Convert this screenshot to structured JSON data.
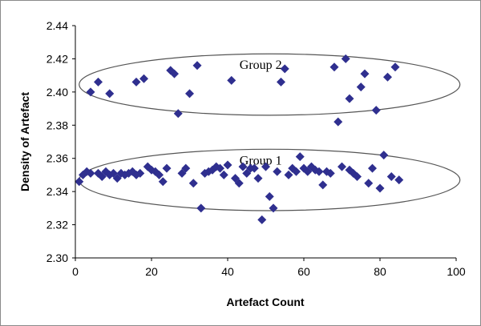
{
  "chart_data": {
    "type": "scatter",
    "title": "",
    "xlabel": "Artefact Count",
    "ylabel": "Density of Artefact",
    "xlim": [
      0,
      100
    ],
    "ylim": [
      2.3,
      2.44
    ],
    "x_ticks": [
      "0",
      "20",
      "40",
      "60",
      "80",
      "100"
    ],
    "y_ticks": [
      "2.30",
      "2.32",
      "2.34",
      "2.36",
      "2.38",
      "2.40",
      "2.42",
      "2.44"
    ],
    "grid": false,
    "legend": "none",
    "marker": "diamond",
    "marker_color": "#2f2f8f",
    "annotations": [
      {
        "text": "Group 2",
        "cx": 51,
        "cy": 2.4045,
        "rx": 50,
        "ry": 0.0185
      },
      {
        "text": "Group 1",
        "cx": 51,
        "cy": 2.347,
        "rx": 50,
        "ry": 0.0185
      }
    ],
    "points": [
      {
        "x": 4,
        "y": 2.4
      },
      {
        "x": 6,
        "y": 2.406
      },
      {
        "x": 9,
        "y": 2.399
      },
      {
        "x": 16,
        "y": 2.406
      },
      {
        "x": 18,
        "y": 2.408
      },
      {
        "x": 25,
        "y": 2.413
      },
      {
        "x": 26,
        "y": 2.411
      },
      {
        "x": 27,
        "y": 2.387
      },
      {
        "x": 30,
        "y": 2.399
      },
      {
        "x": 32,
        "y": 2.416
      },
      {
        "x": 41,
        "y": 2.407
      },
      {
        "x": 54,
        "y": 2.406
      },
      {
        "x": 55,
        "y": 2.414
      },
      {
        "x": 68,
        "y": 2.415
      },
      {
        "x": 69,
        "y": 2.382
      },
      {
        "x": 71,
        "y": 2.42
      },
      {
        "x": 72,
        "y": 2.396
      },
      {
        "x": 75,
        "y": 2.403
      },
      {
        "x": 76,
        "y": 2.411
      },
      {
        "x": 79,
        "y": 2.389
      },
      {
        "x": 82,
        "y": 2.409
      },
      {
        "x": 84,
        "y": 2.415
      },
      {
        "x": 1,
        "y": 2.346
      },
      {
        "x": 2,
        "y": 2.35
      },
      {
        "x": 3,
        "y": 2.352
      },
      {
        "x": 4,
        "y": 2.351
      },
      {
        "x": 6,
        "y": 2.351
      },
      {
        "x": 7,
        "y": 2.349
      },
      {
        "x": 8,
        "y": 2.352
      },
      {
        "x": 9,
        "y": 2.35
      },
      {
        "x": 10,
        "y": 2.351
      },
      {
        "x": 11,
        "y": 2.348
      },
      {
        "x": 12,
        "y": 2.351
      },
      {
        "x": 13,
        "y": 2.35
      },
      {
        "x": 14,
        "y": 2.351
      },
      {
        "x": 15,
        "y": 2.352
      },
      {
        "x": 16,
        "y": 2.35
      },
      {
        "x": 17,
        "y": 2.351
      },
      {
        "x": 19,
        "y": 2.355
      },
      {
        "x": 20,
        "y": 2.353
      },
      {
        "x": 21,
        "y": 2.352
      },
      {
        "x": 22,
        "y": 2.35
      },
      {
        "x": 23,
        "y": 2.346
      },
      {
        "x": 24,
        "y": 2.354
      },
      {
        "x": 28,
        "y": 2.351
      },
      {
        "x": 29,
        "y": 2.354
      },
      {
        "x": 31,
        "y": 2.345
      },
      {
        "x": 33,
        "y": 2.33
      },
      {
        "x": 34,
        "y": 2.351
      },
      {
        "x": 35,
        "y": 2.352
      },
      {
        "x": 36,
        "y": 2.353
      },
      {
        "x": 37,
        "y": 2.355
      },
      {
        "x": 38,
        "y": 2.354
      },
      {
        "x": 39,
        "y": 2.35
      },
      {
        "x": 40,
        "y": 2.356
      },
      {
        "x": 42,
        "y": 2.348
      },
      {
        "x": 43,
        "y": 2.345
      },
      {
        "x": 44,
        "y": 2.355
      },
      {
        "x": 45,
        "y": 2.351
      },
      {
        "x": 46,
        "y": 2.354
      },
      {
        "x": 47,
        "y": 2.354
      },
      {
        "x": 48,
        "y": 2.348
      },
      {
        "x": 49,
        "y": 2.323
      },
      {
        "x": 50,
        "y": 2.355
      },
      {
        "x": 51,
        "y": 2.337
      },
      {
        "x": 52,
        "y": 2.33
      },
      {
        "x": 53,
        "y": 2.352
      },
      {
        "x": 56,
        "y": 2.35
      },
      {
        "x": 57,
        "y": 2.354
      },
      {
        "x": 58,
        "y": 2.352
      },
      {
        "x": 59,
        "y": 2.361
      },
      {
        "x": 60,
        "y": 2.354
      },
      {
        "x": 61,
        "y": 2.352
      },
      {
        "x": 62,
        "y": 2.355
      },
      {
        "x": 63,
        "y": 2.353
      },
      {
        "x": 64,
        "y": 2.352
      },
      {
        "x": 65,
        "y": 2.344
      },
      {
        "x": 66,
        "y": 2.352
      },
      {
        "x": 67,
        "y": 2.351
      },
      {
        "x": 70,
        "y": 2.355
      },
      {
        "x": 72,
        "y": 2.353
      },
      {
        "x": 73,
        "y": 2.351
      },
      {
        "x": 74,
        "y": 2.349
      },
      {
        "x": 77,
        "y": 2.345
      },
      {
        "x": 78,
        "y": 2.354
      },
      {
        "x": 80,
        "y": 2.342
      },
      {
        "x": 81,
        "y": 2.362
      },
      {
        "x": 83,
        "y": 2.349
      },
      {
        "x": 85,
        "y": 2.347
      }
    ]
  }
}
